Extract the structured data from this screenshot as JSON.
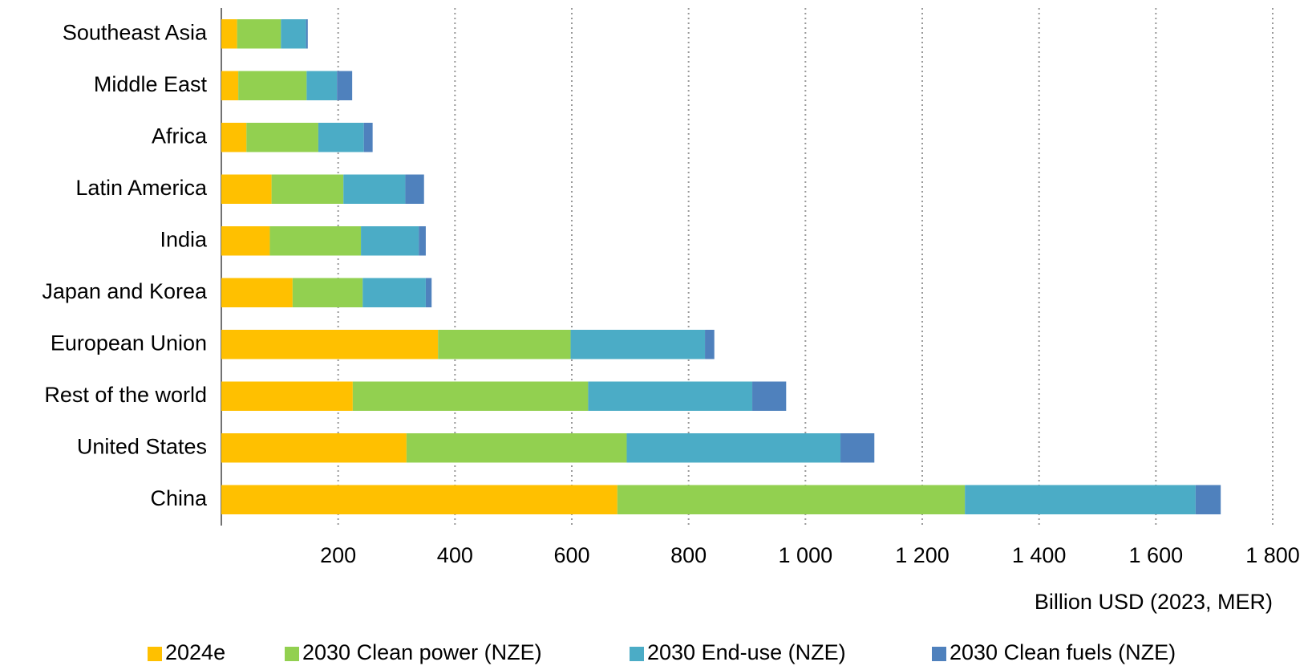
{
  "chart_data": {
    "type": "stacked-bar-horizontal",
    "x_label": "Billion USD (2023, MER)",
    "categories": [
      "Southeast Asia",
      "Middle East",
      "Africa",
      "Latin America",
      "India",
      "Japan and Korea",
      "European Union",
      "Rest of the world",
      "United States",
      "China"
    ],
    "series": [
      {
        "name": "2024e",
        "color": "#FFC000",
        "values": [
          27,
          29,
          43,
          86,
          83,
          122,
          371,
          225,
          317,
          678
        ]
      },
      {
        "name": "2030 Clean power (NZE)",
        "color": "#92D050",
        "values": [
          75,
          117,
          123,
          123,
          156,
          120,
          227,
          403,
          377,
          595
        ]
      },
      {
        "name": "2030 End-use (NZE)",
        "color": "#4BACC6",
        "values": [
          43,
          52,
          78,
          106,
          99,
          108,
          230,
          281,
          366,
          395
        ]
      },
      {
        "name": "2030 Clean fuels (NZE)",
        "color": "#4F81BD",
        "values": [
          3,
          26,
          15,
          32,
          12,
          10,
          16,
          58,
          58,
          43
        ]
      }
    ],
    "xlim": [
      0,
      1800
    ],
    "xticks": [
      200,
      400,
      600,
      800,
      {
        "value": 1000,
        "label": "1 000"
      },
      {
        "value": 1200,
        "label": "1 200"
      },
      {
        "value": 1400,
        "label": "1 400"
      },
      {
        "value": 1600,
        "label": "1 600"
      },
      {
        "value": 1800,
        "label": "1 800"
      }
    ],
    "grid": true,
    "legend": "bottom"
  }
}
